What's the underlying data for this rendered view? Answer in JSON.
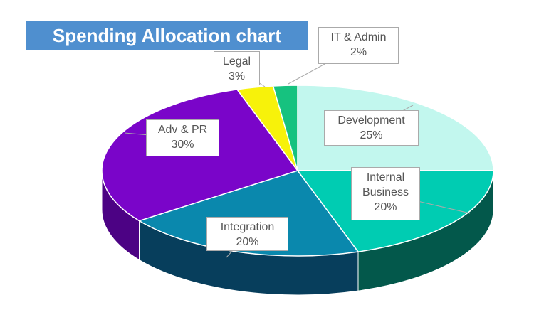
{
  "chart_data": {
    "type": "pie",
    "title": "Spending Allocation chart",
    "categories": [
      "Development",
      "Internal Business",
      "Integration",
      "Adv & PR",
      "Legal",
      "IT & Admin"
    ],
    "values": [
      25,
      20,
      20,
      30,
      3,
      2
    ],
    "value_labels": [
      "25%",
      "20%",
      "20%",
      "30%",
      "3%",
      "2%"
    ],
    "colors": [
      "#c2f7ee",
      "#00ccb2",
      "#0a88ad",
      "#7a05c9",
      "#f7f20a",
      "#16c27f"
    ],
    "side_colors": [
      "#8fc9c0",
      "#03584b",
      "#073e5c",
      "#4c0284",
      "#a9a300",
      "#0a7a4f"
    ]
  }
}
